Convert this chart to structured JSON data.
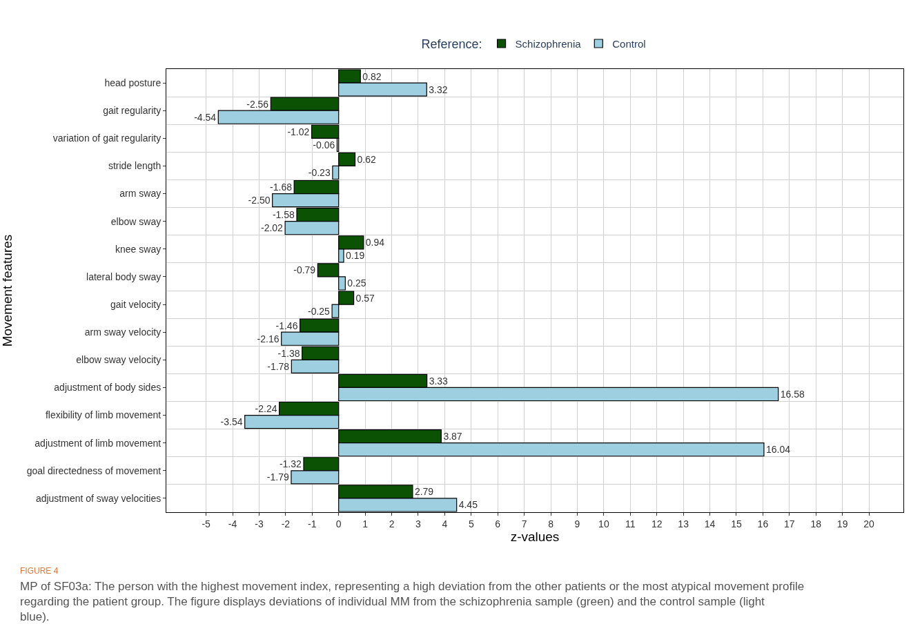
{
  "chart_data": {
    "type": "bar",
    "orientation": "horizontal",
    "xlabel": "z-values",
    "ylabel": "Movement features",
    "legend_title": "Reference:",
    "categories": [
      "head posture",
      "gait regularity",
      "variation of gait regularity",
      "stride length",
      "arm sway",
      "elbow sway",
      "knee sway",
      "lateral body sway",
      "gait velocity",
      "arm sway velocity",
      "elbow sway velocity",
      "adjustment of body sides",
      "flexibility of limb movement",
      "adjustment of limb movement",
      "goal directedness of movement",
      "adjustment of sway velocities"
    ],
    "series": [
      {
        "name": "Schizophrenia",
        "color": "#0b5204",
        "values": [
          0.82,
          -2.56,
          -1.02,
          0.62,
          -1.68,
          -1.58,
          0.94,
          -0.79,
          0.57,
          -1.46,
          -1.38,
          3.33,
          -2.24,
          3.87,
          -1.32,
          2.79
        ],
        "value_labels": [
          "0.82",
          "-2.56",
          "-1.02",
          "0.62",
          "-1.68",
          "-1.58",
          "0.94",
          "-0.79",
          "0.57",
          "-1.46",
          "-1.38",
          "3.33",
          "-2.24",
          "3.87",
          "-1.32",
          "2.79"
        ]
      },
      {
        "name": "Control",
        "color": "#9ecfe0",
        "values": [
          3.32,
          -4.54,
          -0.06,
          -0.23,
          -2.5,
          -2.02,
          0.19,
          0.25,
          -0.25,
          -2.16,
          -1.78,
          16.58,
          -3.54,
          16.04,
          -1.79,
          4.45
        ],
        "value_labels": [
          "3.32",
          "-4.54",
          "-0.06",
          "-0.23",
          "-2.50",
          "-2.02",
          "0.19",
          "0.25",
          "-0.25",
          "-2.16",
          "-1.78",
          "16.58",
          "-3.54",
          "16.04",
          "-1.79",
          "4.45"
        ]
      }
    ],
    "xlim": [
      -6.5,
      21.3
    ],
    "xticks": [
      -5,
      -4,
      -3,
      -2,
      -1,
      0,
      1,
      2,
      3,
      4,
      5,
      6,
      7,
      8,
      9,
      10,
      11,
      12,
      13,
      14,
      15,
      16,
      17,
      18,
      19,
      20
    ],
    "grid": true,
    "legend": "top",
    "annotations": [
      "FIGURE 4",
      "MP of SF03a: The person with the highest movement index, representing a high deviation from the other patients or the most atypical movement profile regarding the patient group. The figure displays deviations of individual MM from the schizophrenia sample (green) and the control sample (light blue)."
    ]
  }
}
